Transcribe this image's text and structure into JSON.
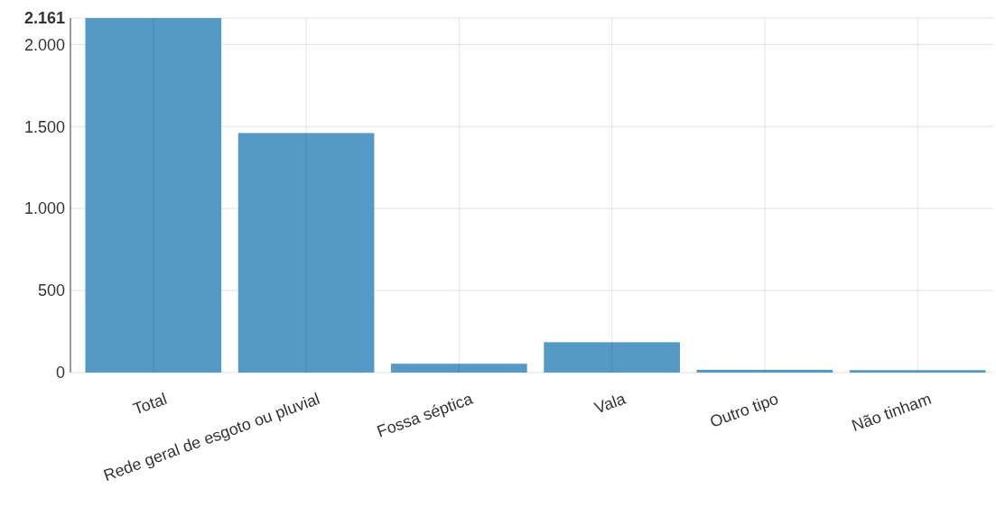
{
  "chart_data": {
    "type": "bar",
    "categories": [
      "Total",
      "Rede geral de esgoto ou pluvial",
      "Fossa séptica",
      "Vala",
      "Outro tipo",
      "Não tinham"
    ],
    "values": [
      2161,
      1460,
      54,
      185,
      17,
      15
    ],
    "color": "#5599c7",
    "ylim": [
      0,
      2161
    ],
    "yticks": [
      0,
      {
        "value": 500,
        "label": "500"
      },
      {
        "value": 1000,
        "label": "1.000"
      },
      {
        "value": 1500,
        "label": "1.500"
      },
      {
        "value": 2000,
        "label": "2.000"
      },
      {
        "value": 2161,
        "label": "2.161"
      }
    ],
    "grid": true
  }
}
